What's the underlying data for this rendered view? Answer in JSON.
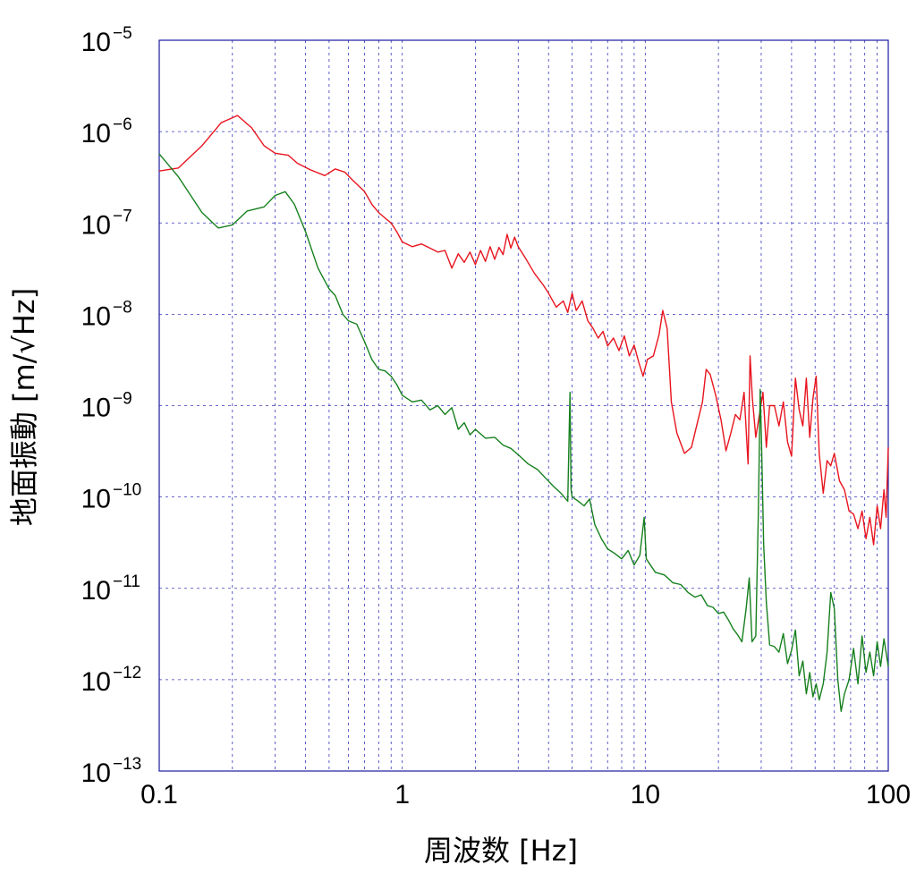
{
  "chart_data": {
    "type": "line",
    "xlabel": "周波数 [Hz]",
    "ylabel": "地面振動 [m/√Hz]",
    "x_scale": "log",
    "y_scale": "log",
    "xlim": [
      0.1,
      100
    ],
    "ylim": [
      1e-13,
      1e-05
    ],
    "grid": true,
    "x_ticks": [
      {
        "value": 0.1,
        "label": "0.1"
      },
      {
        "value": 1,
        "label": "1"
      },
      {
        "value": 10,
        "label": "10"
      },
      {
        "value": 100,
        "label": "100"
      }
    ],
    "y_ticks": [
      {
        "value": 1e-05,
        "base": "10",
        "exp": "−5"
      },
      {
        "value": 1e-06,
        "base": "10",
        "exp": "−6"
      },
      {
        "value": 1e-07,
        "base": "10",
        "exp": "−7"
      },
      {
        "value": 1e-08,
        "base": "10",
        "exp": "−8"
      },
      {
        "value": 1e-09,
        "base": "10",
        "exp": "−9"
      },
      {
        "value": 1e-10,
        "base": "10",
        "exp": "−10"
      },
      {
        "value": 1e-11,
        "base": "10",
        "exp": "−11"
      },
      {
        "value": 1e-12,
        "base": "10",
        "exp": "−12"
      },
      {
        "value": 1e-13,
        "base": "10",
        "exp": "−13"
      }
    ],
    "series": [
      {
        "color": "#e8141e",
        "points": [
          [
            0.1,
            3.7e-07
          ],
          [
            0.12,
            4e-07
          ],
          [
            0.15,
            7e-07
          ],
          [
            0.18,
            1.25e-06
          ],
          [
            0.21,
            1.5e-06
          ],
          [
            0.24,
            1.1e-06
          ],
          [
            0.27,
            7e-07
          ],
          [
            0.3,
            5.8e-07
          ],
          [
            0.34,
            5.5e-07
          ],
          [
            0.37,
            4.5e-07
          ],
          [
            0.42,
            3.8e-07
          ],
          [
            0.48,
            3.3e-07
          ],
          [
            0.53,
            3.9e-07
          ],
          [
            0.58,
            3.6e-07
          ],
          [
            0.62,
            3e-07
          ],
          [
            0.7,
            2.2e-07
          ],
          [
            0.75,
            1.6e-07
          ],
          [
            0.8,
            1.3e-07
          ],
          [
            0.86,
            1.1e-07
          ],
          [
            0.9,
            1e-07
          ],
          [
            0.95,
            8e-08
          ],
          [
            1.0,
            6.2e-08
          ],
          [
            1.1,
            5.5e-08
          ],
          [
            1.2,
            5.9e-08
          ],
          [
            1.3,
            5.3e-08
          ],
          [
            1.4,
            4.8e-08
          ],
          [
            1.5,
            5e-08
          ],
          [
            1.6,
            3.2e-08
          ],
          [
            1.7,
            4.6e-08
          ],
          [
            1.8,
            3.7e-08
          ],
          [
            1.9,
            4.8e-08
          ],
          [
            2.0,
            3.5e-08
          ],
          [
            2.1,
            5e-08
          ],
          [
            2.2,
            3.8e-08
          ],
          [
            2.3,
            5.5e-08
          ],
          [
            2.4,
            4e-08
          ],
          [
            2.5,
            5.4e-08
          ],
          [
            2.6,
            4.5e-08
          ],
          [
            2.7,
            7.5e-08
          ],
          [
            2.8,
            5.3e-08
          ],
          [
            2.9,
            7e-08
          ],
          [
            3.0,
            5.5e-08
          ],
          [
            3.2,
            4.2e-08
          ],
          [
            3.5,
            2.8e-08
          ],
          [
            3.8,
            2.1e-08
          ],
          [
            4.0,
            1.7e-08
          ],
          [
            4.3,
            1.2e-08
          ],
          [
            4.6,
            1.4e-08
          ],
          [
            4.8,
            1.05e-08
          ],
          [
            5.0,
            1.7e-08
          ],
          [
            5.2,
            1.1e-08
          ],
          [
            5.5,
            1.4e-08
          ],
          [
            5.8,
            8.5e-09
          ],
          [
            6.1,
            7e-09
          ],
          [
            6.4,
            5.5e-09
          ],
          [
            6.7,
            6.5e-09
          ],
          [
            7.0,
            4.5e-09
          ],
          [
            7.4,
            5.5e-09
          ],
          [
            7.8,
            4e-09
          ],
          [
            8.2,
            5.8e-09
          ],
          [
            8.6,
            3.5e-09
          ],
          [
            9.0,
            4.6e-09
          ],
          [
            9.4,
            3e-09
          ],
          [
            9.8,
            2.1e-09
          ],
          [
            10.2,
            3.2e-09
          ],
          [
            10.8,
            3.5e-09
          ],
          [
            11.4,
            6e-09
          ],
          [
            11.8,
            1.1e-08
          ],
          [
            12.3,
            7e-09
          ],
          [
            12.8,
            1.1e-09
          ],
          [
            13.5,
            5e-10
          ],
          [
            14.5,
            3e-10
          ],
          [
            15.5,
            3.5e-10
          ],
          [
            16.5,
            7e-10
          ],
          [
            17.2,
            1.1e-09
          ],
          [
            17.8,
            2.5e-09
          ],
          [
            18.5,
            2.2e-09
          ],
          [
            19.5,
            1.3e-09
          ],
          [
            20.5,
            7e-10
          ],
          [
            21.5,
            3.2e-10
          ],
          [
            22.5,
            5e-10
          ],
          [
            23.5,
            8e-10
          ],
          [
            24.5,
            7e-10
          ],
          [
            25.5,
            1.4e-09
          ],
          [
            26.5,
            2.3e-10
          ],
          [
            27.0,
            3.5e-09
          ],
          [
            27.6,
            1.2e-09
          ],
          [
            28.5,
            4.5e-10
          ],
          [
            29.5,
            8e-10
          ],
          [
            30.5,
            1.4e-09
          ],
          [
            31.5,
            3.5e-10
          ],
          [
            32.5,
            1e-09
          ],
          [
            34.0,
            1e-09
          ],
          [
            35.5,
            6e-10
          ],
          [
            37.0,
            1.1e-09
          ],
          [
            38.5,
            4e-10
          ],
          [
            40.0,
            2.8e-10
          ],
          [
            41.5,
            2e-09
          ],
          [
            43.0,
            9e-10
          ],
          [
            44.5,
            6e-10
          ],
          [
            46.0,
            2e-09
          ],
          [
            47.5,
            4.5e-10
          ],
          [
            49.0,
            1.2e-09
          ],
          [
            50.5,
            2.1e-09
          ],
          [
            52.0,
            3e-10
          ],
          [
            54.0,
            1.1e-10
          ],
          [
            56.0,
            2.5e-10
          ],
          [
            58.0,
            2.2e-10
          ],
          [
            60.0,
            3e-10
          ],
          [
            63.0,
            1.5e-10
          ],
          [
            66.0,
            1.2e-10
          ],
          [
            69.0,
            7e-11
          ],
          [
            72.0,
            6.5e-11
          ],
          [
            75.0,
            4.5e-11
          ],
          [
            78.0,
            7e-11
          ],
          [
            81.0,
            3.5e-11
          ],
          [
            84.0,
            6e-11
          ],
          [
            87.0,
            3e-11
          ],
          [
            90.0,
            8e-11
          ],
          [
            93.0,
            4.5e-11
          ],
          [
            96.0,
            1.2e-10
          ],
          [
            98.0,
            6e-11
          ],
          [
            100.0,
            3.5e-10
          ]
        ]
      },
      {
        "color": "#16801e",
        "points": [
          [
            0.1,
            5.7e-07
          ],
          [
            0.12,
            3.2e-07
          ],
          [
            0.15,
            1.3e-07
          ],
          [
            0.175,
            8.8e-08
          ],
          [
            0.2,
            9.5e-08
          ],
          [
            0.23,
            1.35e-07
          ],
          [
            0.27,
            1.5e-07
          ],
          [
            0.3,
            2e-07
          ],
          [
            0.33,
            2.2e-07
          ],
          [
            0.36,
            1.6e-07
          ],
          [
            0.4,
            8e-08
          ],
          [
            0.45,
            3.2e-08
          ],
          [
            0.5,
            1.9e-08
          ],
          [
            0.53,
            1.6e-08
          ],
          [
            0.57,
            1e-08
          ],
          [
            0.6,
            8.5e-09
          ],
          [
            0.65,
            7.8e-09
          ],
          [
            0.7,
            5e-09
          ],
          [
            0.75,
            3.2e-09
          ],
          [
            0.8,
            2.5e-09
          ],
          [
            0.85,
            2.4e-09
          ],
          [
            0.9,
            2.1e-09
          ],
          [
            0.95,
            1.7e-09
          ],
          [
            1.0,
            1.3e-09
          ],
          [
            1.1,
            1.1e-09
          ],
          [
            1.2,
            1.15e-09
          ],
          [
            1.3,
            9e-10
          ],
          [
            1.4,
            1e-09
          ],
          [
            1.5,
            8e-10
          ],
          [
            1.6,
            9.5e-10
          ],
          [
            1.7,
            5.5e-10
          ],
          [
            1.8,
            6.5e-10
          ],
          [
            1.9,
            4.8e-10
          ],
          [
            2.0,
            5.5e-10
          ],
          [
            2.2,
            4.4e-10
          ],
          [
            2.4,
            4.5e-10
          ],
          [
            2.6,
            3.7e-10
          ],
          [
            2.8,
            3.4e-10
          ],
          [
            3.0,
            2.9e-10
          ],
          [
            3.3,
            2.3e-10
          ],
          [
            3.6,
            2e-10
          ],
          [
            3.9,
            1.6e-10
          ],
          [
            4.2,
            1.3e-10
          ],
          [
            4.5,
            1.1e-10
          ],
          [
            4.8,
            9e-11
          ],
          [
            4.9,
            1.4e-09
          ],
          [
            4.95,
            1.2e-10
          ],
          [
            5.0,
            1e-10
          ],
          [
            5.3,
            9e-11
          ],
          [
            5.6,
            8e-11
          ],
          [
            5.9,
            9.5e-11
          ],
          [
            6.2,
            5e-11
          ],
          [
            6.6,
            3.5e-11
          ],
          [
            7.0,
            2.7e-11
          ],
          [
            7.5,
            2.4e-11
          ],
          [
            8.0,
            2.1e-11
          ],
          [
            8.5,
            2.6e-11
          ],
          [
            9.0,
            1.8e-11
          ],
          [
            9.5,
            2.3e-11
          ],
          [
            9.9,
            6e-11
          ],
          [
            10.1,
            2.1e-11
          ],
          [
            10.5,
            1.8e-11
          ],
          [
            11.0,
            1.5e-11
          ],
          [
            12.0,
            1.4e-11
          ],
          [
            13.0,
            1.15e-11
          ],
          [
            14.0,
            1.1e-11
          ],
          [
            15.0,
            9e-12
          ],
          [
            16.0,
            8e-12
          ],
          [
            17.0,
            8.5e-12
          ],
          [
            18.0,
            6.5e-12
          ],
          [
            19.0,
            6.2e-12
          ],
          [
            20.0,
            5.3e-12
          ],
          [
            21.0,
            5.5e-12
          ],
          [
            22.0,
            4.5e-12
          ],
          [
            23.0,
            3.6e-12
          ],
          [
            24.0,
            3.1e-12
          ],
          [
            25.0,
            2.6e-12
          ],
          [
            26.0,
            6e-12
          ],
          [
            26.8,
            1.3e-11
          ],
          [
            27.5,
            2.6e-12
          ],
          [
            28.5,
            3e-12
          ],
          [
            29.2,
            7e-11
          ],
          [
            29.7,
            1.5e-09
          ],
          [
            30.1,
            4e-10
          ],
          [
            30.7,
            3e-11
          ],
          [
            31.5,
            7e-12
          ],
          [
            32.5,
            2.4e-12
          ],
          [
            34.0,
            2.3e-12
          ],
          [
            35.5,
            2e-12
          ],
          [
            37.0,
            3.2e-12
          ],
          [
            38.5,
            1.5e-12
          ],
          [
            40.0,
            2.1e-12
          ],
          [
            41.5,
            3.5e-12
          ],
          [
            43.0,
            1.1e-12
          ],
          [
            44.5,
            1.6e-12
          ],
          [
            46.0,
            7e-13
          ],
          [
            47.5,
            1.2e-12
          ],
          [
            49.0,
            6.5e-13
          ],
          [
            50.5,
            9e-13
          ],
          [
            52.0,
            6e-13
          ],
          [
            54.0,
            9e-13
          ],
          [
            56.0,
            2e-12
          ],
          [
            58.0,
            9e-12
          ],
          [
            60.0,
            6e-12
          ],
          [
            62.0,
            1e-12
          ],
          [
            64.0,
            4.5e-13
          ],
          [
            66.0,
            7e-13
          ],
          [
            69.0,
            1e-12
          ],
          [
            72.0,
            2.2e-12
          ],
          [
            75.0,
            9e-13
          ],
          [
            78.0,
            3e-12
          ],
          [
            81.0,
            1.2e-12
          ],
          [
            84.0,
            2e-12
          ],
          [
            87.0,
            1.1e-12
          ],
          [
            90.0,
            2.6e-12
          ],
          [
            93.0,
            1.4e-12
          ],
          [
            96.0,
            2.8e-12
          ],
          [
            100.0,
            1.4e-12
          ]
        ]
      }
    ]
  }
}
